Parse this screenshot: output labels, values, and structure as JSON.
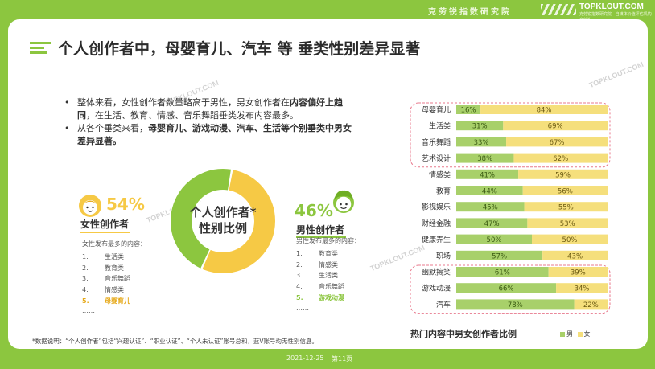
{
  "header": {
    "institute": "克劳锐指数研究院",
    "brand": "TOPKLOUT.COM",
    "brand_sub": "克劳锐指数研究院 · 自媒体价值评估机构 · 克劳锐"
  },
  "slide": {
    "title": "个人创作者中，母婴育儿、汽车 等 垂类性别差异显著",
    "bullets": [
      [
        {
          "t": "整体来看，女性创作者数量略高于男性，男女创作者在",
          "b": false
        },
        {
          "t": "内容偏好上趋同",
          "b": true
        },
        {
          "t": "，在生活、教育、情感、音乐舞蹈垂类发布内容最多。",
          "b": false
        }
      ],
      [
        {
          "t": "从各个垂类来看，",
          "b": false
        },
        {
          "t": "母婴育儿、游戏动漫、汽车、生活等个别垂类中男女差异显著。",
          "b": true
        }
      ]
    ],
    "watermark": "TOPKLOUT.COM"
  },
  "donut": {
    "center_text": [
      "个人创作者*",
      "性别比例"
    ],
    "female_pct": "54%",
    "male_pct": "46%",
    "female_label": "女性创作者",
    "male_label": "男性创作者",
    "colors": {
      "female": "#f6c945",
      "male": "#8cc63f"
    }
  },
  "female_list": {
    "heading": "女性发布最多的内容：",
    "items": [
      {
        "n": "1.",
        "label": "生活类",
        "highlight": false
      },
      {
        "n": "2.",
        "label": "教育类",
        "highlight": false
      },
      {
        "n": "3.",
        "label": "音乐舞蹈",
        "highlight": false
      },
      {
        "n": "4.",
        "label": "情感类",
        "highlight": false
      },
      {
        "n": "5.",
        "label": "母婴育儿",
        "highlight": true
      }
    ],
    "ellipsis": "……"
  },
  "male_list": {
    "heading": "男性发布最多的内容：",
    "items": [
      {
        "n": "1.",
        "label": "教育类",
        "highlight": false
      },
      {
        "n": "2.",
        "label": "情感类",
        "highlight": false
      },
      {
        "n": "3.",
        "label": "生活类",
        "highlight": false
      },
      {
        "n": "4.",
        "label": "音乐舞蹈",
        "highlight": false
      },
      {
        "n": "5.",
        "label": "游戏动漫",
        "highlight": true
      }
    ],
    "ellipsis": "……"
  },
  "note": "*数据说明：“个人创作者”包括“兴趣认证”、“职业认证”、“个人未认证”账号总和，蓝V账号均无性别信息。",
  "chart_data": [
    {
      "type": "pie",
      "categories": [
        "女性创作者",
        "男性创作者"
      ],
      "values": [
        54,
        46
      ],
      "title": "个人创作者*性别比例"
    },
    {
      "type": "bar",
      "orientation": "horizontal",
      "stacked": true,
      "title": "热门内容中男女创作者比例",
      "categories": [
        "母婴育儿",
        "生活类",
        "音乐舞蹈",
        "艺术设计",
        "情感类",
        "教育",
        "影视娱乐",
        "财经金融",
        "健康养生",
        "职场",
        "幽默搞笑",
        "游戏动漫",
        "汽车"
      ],
      "series": [
        {
          "name": "男",
          "values": [
            16,
            31,
            33,
            38,
            41,
            44,
            45,
            47,
            50,
            57,
            61,
            66,
            78
          ]
        },
        {
          "name": "女",
          "values": [
            84,
            69,
            67,
            62,
            59,
            56,
            55,
            53,
            50,
            43,
            39,
            34,
            22
          ]
        }
      ],
      "highlight_groups": [
        [
          0,
          3
        ],
        [
          10,
          12
        ]
      ],
      "xlim": [
        0,
        100
      ],
      "legend": "bottom-right",
      "colors": {
        "男": "#a8d06a",
        "女": "#f5df7c",
        "highlight_border": "#e8788c"
      }
    }
  ],
  "footer": {
    "date": "2021-12-25",
    "page": "第11页"
  }
}
